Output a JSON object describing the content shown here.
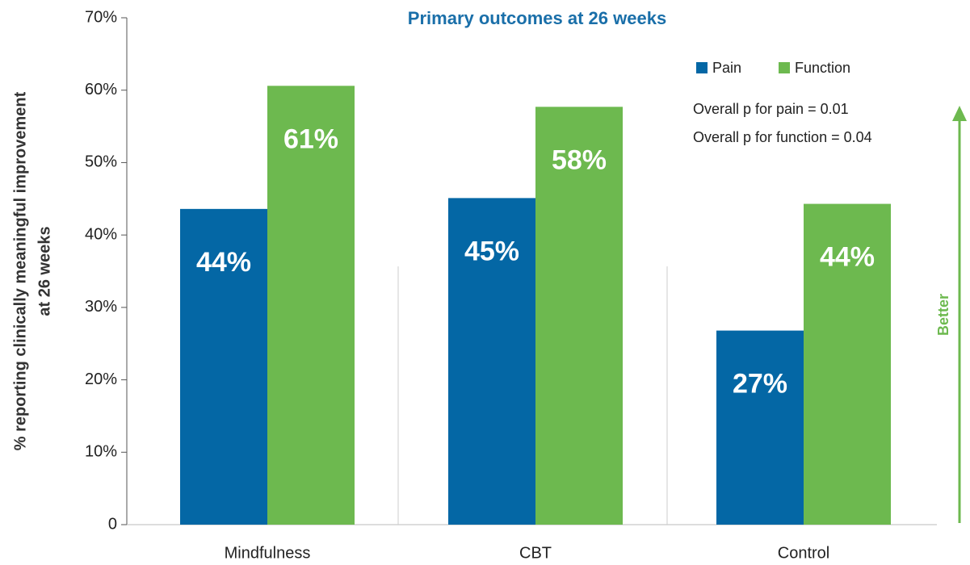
{
  "chart_data": {
    "type": "bar",
    "title": "Primary outcomes at 26 weeks",
    "y_label": [
      "% reporting clinically meaningful improvement",
      "at 26 weeks"
    ],
    "categories": [
      "Mindfulness",
      "CBT",
      "Control"
    ],
    "series": [
      {
        "name": "Pain",
        "color": "#0467a5",
        "values": [
          43.6,
          45.1,
          26.8
        ],
        "value_labels": [
          "44%",
          "45%",
          "27%"
        ]
      },
      {
        "name": "Function",
        "color": "#6db94f",
        "values": [
          60.6,
          57.7,
          44.3
        ],
        "value_labels": [
          "61%",
          "58%",
          "44%"
        ]
      }
    ],
    "ylim": [
      0,
      70
    ],
    "yticks": [
      0,
      {
        "value": 10,
        "label": "10%"
      },
      {
        "value": 20,
        "label": "20%"
      },
      {
        "value": 30,
        "label": "30%"
      },
      {
        "value": 40,
        "label": "40%"
      },
      {
        "value": 50,
        "label": "50%"
      },
      {
        "value": 60,
        "label": "60%"
      },
      {
        "value": 70,
        "label": "70%"
      }
    ],
    "annotations": [
      "Overall p for pain = 0.01",
      "Overall p for function = 0.04"
    ],
    "arrow_label": "Better",
    "arrow_color": "#6db94f",
    "legend": "top-right"
  }
}
